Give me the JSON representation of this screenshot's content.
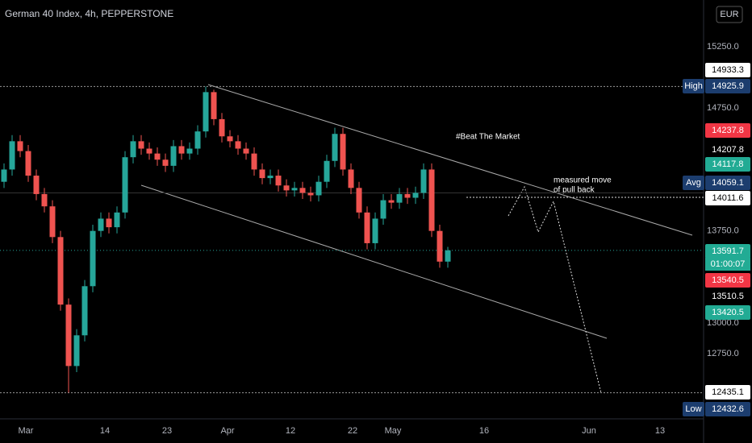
{
  "chart_data": {
    "type": "candlestick",
    "title": "German 40 Index, 4h, PEPPERSTONE",
    "currency": "EUR",
    "annotations": [
      "#Beat The Market",
      "measured move",
      "of pull back"
    ],
    "ylim": [
      12220,
      15630
    ],
    "yticks": [
      {
        "value": 12750,
        "label": "12750.0"
      },
      {
        "value": 13000,
        "label": "13000.0"
      },
      {
        "value": 13750,
        "label": "13750.0"
      },
      {
        "value": 14750,
        "label": "14750.0"
      },
      {
        "value": 15250,
        "label": "15250.0"
      }
    ],
    "x_labels": [
      "Mar",
      "14",
      "23",
      "Apr",
      "12",
      "22",
      "May",
      "16",
      "Jun",
      "13"
    ],
    "up_color": "#26a69a",
    "down_color": "#ef5350",
    "open": [
      14150,
      14250,
      14480,
      14400,
      14200,
      14050,
      13950,
      13700,
      13150,
      12650,
      12900,
      13300,
      13750,
      13850,
      13780,
      13900,
      14350,
      14480,
      14420,
      14380,
      14330,
      14280,
      14440,
      14380,
      14420,
      14560,
      14880,
      14660,
      14520,
      14480,
      14420,
      14380,
      14250,
      14180,
      14200,
      14120,
      14080,
      14100,
      14060,
      14040,
      14150,
      14320,
      14540,
      14250,
      14100,
      13900,
      13650,
      13850,
      14000,
      13980,
      14050,
      14020,
      14060,
      14250,
      13750,
      13500
    ],
    "high": [
      14300,
      14530,
      14530,
      14450,
      14250,
      14100,
      14000,
      13750,
      13200,
      12950,
      13350,
      13800,
      13900,
      13900,
      13950,
      14400,
      14530,
      14530,
      14470,
      14430,
      14380,
      14490,
      14490,
      14470,
      14610,
      14926,
      14900,
      14710,
      14570,
      14530,
      14470,
      14430,
      14300,
      14250,
      14250,
      14170,
      14150,
      14150,
      14110,
      14200,
      14370,
      14590,
      14590,
      14300,
      14150,
      13950,
      13900,
      14050,
      14050,
      14100,
      14100,
      14110,
      14300,
      14300,
      13800,
      13620
    ],
    "low": [
      14100,
      14200,
      14350,
      14150,
      14000,
      13900,
      13650,
      13100,
      12433,
      12600,
      12850,
      13250,
      13700,
      13730,
      13730,
      13850,
      14300,
      14370,
      14330,
      14280,
      14230,
      14230,
      14330,
      14330,
      14370,
      14510,
      14610,
      14470,
      14430,
      14370,
      14330,
      14200,
      14130,
      14130,
      14070,
      14030,
      14030,
      14010,
      13990,
      13990,
      14100,
      14270,
      14200,
      14050,
      13850,
      13600,
      13600,
      13800,
      13930,
      13930,
      13970,
      13970,
      14010,
      13700,
      13450,
      13450
    ],
    "close": [
      14250,
      14480,
      14400,
      14200,
      14050,
      13950,
      13700,
      13150,
      12650,
      12900,
      13300,
      13750,
      13850,
      13780,
      13900,
      14350,
      14480,
      14420,
      14380,
      14330,
      14280,
      14440,
      14380,
      14420,
      14560,
      14880,
      14660,
      14520,
      14480,
      14420,
      14380,
      14250,
      14180,
      14200,
      14120,
      14080,
      14100,
      14060,
      14040,
      14150,
      14320,
      14540,
      14250,
      14100,
      13900,
      13650,
      13850,
      14000,
      13980,
      14050,
      14020,
      14060,
      14250,
      13750,
      13500,
      13591.7
    ],
    "price_labels": [
      {
        "value": 14933.3,
        "bg": "#ffffff"
      },
      {
        "value": 14925.9,
        "tag": "High",
        "bg": "#1c3d6e"
      },
      {
        "value": 14237.8,
        "bg": "#f23645"
      },
      {
        "value": 14207.8,
        "bg": "#000000"
      },
      {
        "value": 14117.8,
        "bg": "#22ab94"
      },
      {
        "value": 14059.1,
        "tag": "Avg",
        "bg": "#1c3d6e"
      },
      {
        "value": 14011.6,
        "bg": "#ffffff"
      },
      {
        "value": 13591.7,
        "bg": "#22ab94"
      },
      {
        "value": 13540.5,
        "bg": "#f23645"
      },
      {
        "value": 13510.5,
        "bg": "#000000"
      },
      {
        "value": 13420.5,
        "bg": "#22ab94"
      },
      {
        "value": 12435.1,
        "bg": "#ffffff"
      },
      {
        "value": 12432.6,
        "tag": "Low",
        "bg": "#1c3d6e"
      }
    ],
    "countdown": "01:00:07"
  }
}
